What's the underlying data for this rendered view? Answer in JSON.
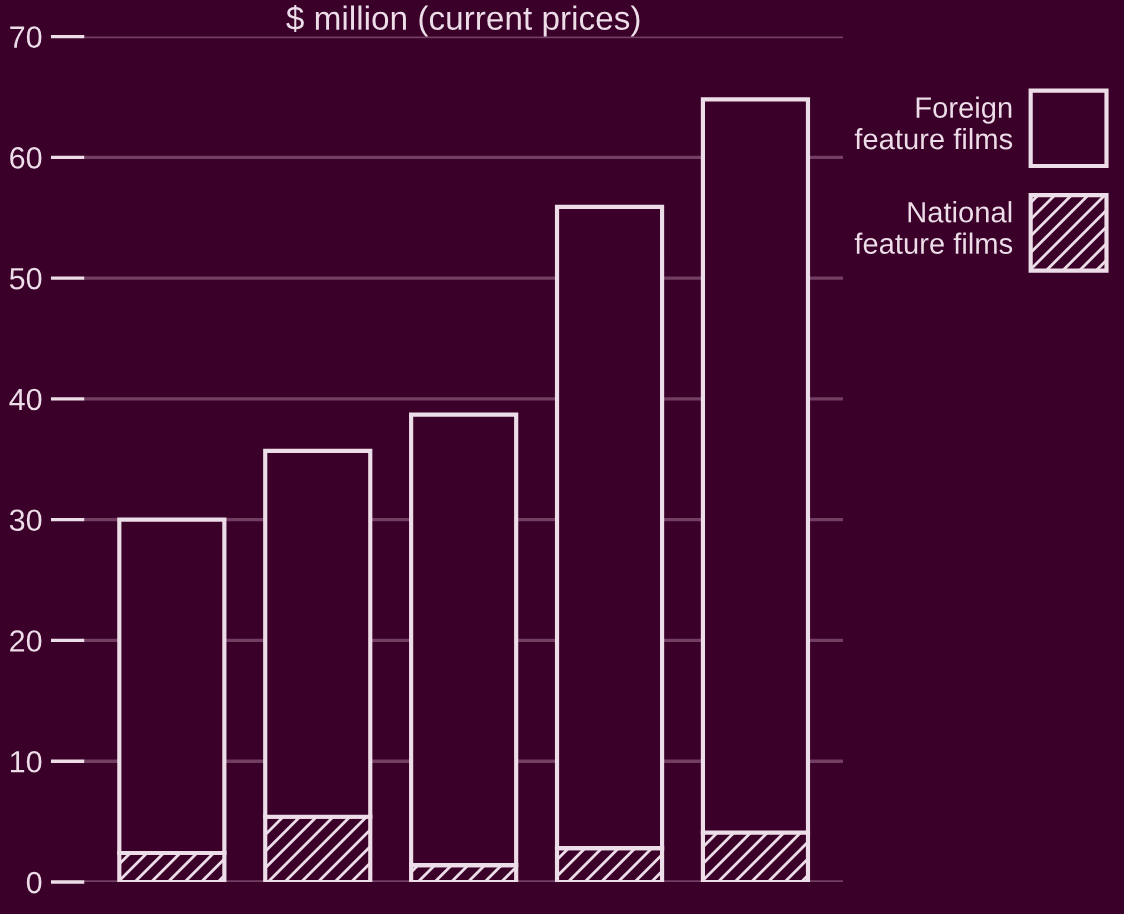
{
  "chart_data": {
    "type": "bar",
    "title": "$ million (current prices)",
    "categories": [
      null,
      null,
      null,
      null,
      null
    ],
    "stacked": true,
    "series": [
      {
        "name": "National feature films",
        "color": "#eddde8",
        "values": [
          2.4,
          5.4,
          1.4,
          2.8,
          4.1
        ]
      },
      {
        "name": "Foreign feature films",
        "color": "#eddde8",
        "values": [
          27.6,
          30.3,
          37.3,
          53.1,
          60.7
        ]
      }
    ],
    "ylim": [
      0,
      70
    ],
    "yticks": [
      0,
      10,
      20,
      30,
      40,
      50,
      60,
      70
    ],
    "grid": "y",
    "legend": "top right"
  }
}
